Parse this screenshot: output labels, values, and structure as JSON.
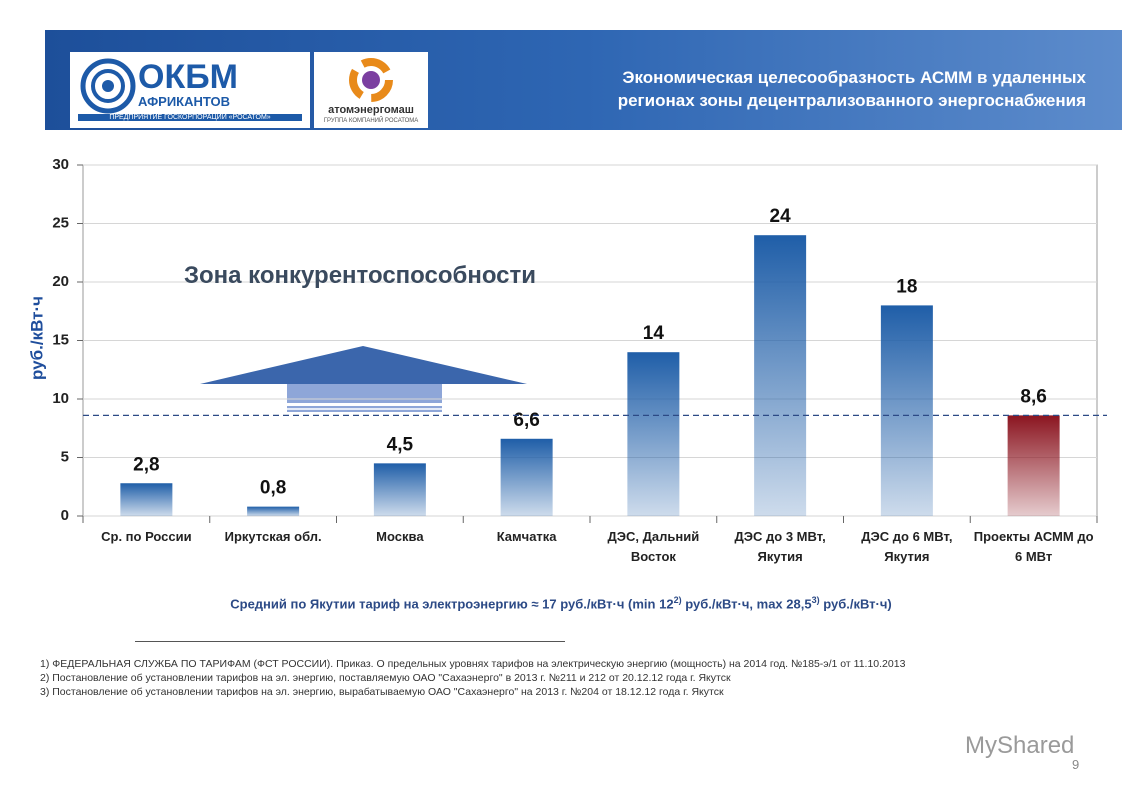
{
  "header": {
    "title_lines": [
      "Экономическая целесообразность АСММ в удаленных",
      "регионах зоны децентрализованного энергоснабжения"
    ],
    "logo1": {
      "name": "ОКБМ",
      "sub": "АФРИКАНТОВ",
      "caption": "ПРЕДПРИЯТИЕ ГОСКОРПОРАЦИИ «РОСАТОМ»"
    },
    "logo2": {
      "name": "атомэнергомаш",
      "caption": "ГРУППА КОМПАНИЙ РОСАТОМА"
    }
  },
  "chart_data": {
    "type": "bar",
    "y_label": "руб./кВт·ч",
    "annotation": "Зона конкурентоспособности",
    "categories": [
      "Ср. по России",
      "Иркутская обл.",
      "Москва",
      "Камчатка",
      "ДЭС, Дальний Восток",
      "ДЭС до 3 МВт, Якутия",
      "ДЭС до 6 МВт, Якутия",
      "Проекты АСММ до 6 МВт"
    ],
    "values": [
      2.8,
      0.8,
      4.5,
      6.6,
      14,
      24,
      18,
      8.6
    ],
    "value_labels": [
      "2,8",
      "0,8",
      "4,5",
      "6,6",
      "14",
      "24",
      "18",
      "8,6"
    ],
    "colors": [
      "#1f5ea8",
      "#1f5ea8",
      "#1f5ea8",
      "#1f5ea8",
      "#1f5ea8",
      "#1f5ea8",
      "#1f5ea8",
      "#8b1520"
    ],
    "reference_line": 8.6,
    "ylim": [
      0,
      30
    ],
    "yticks": [
      0,
      5,
      10,
      15,
      20,
      25,
      30
    ],
    "grid": true
  },
  "note": [
    "Средний по Якутии тариф на электроэнергию ≈ 17 руб./кВт·ч (min 12",
    "2)",
    " руб./кВт·ч, max 28,5",
    "3)",
    " руб./кВт·ч)"
  ],
  "footnotes": [
    "1) ФЕДЕРАЛЬНАЯ СЛУЖБА ПО ТАРИФАМ (ФСТ РОССИИ). Приказ. О предельных уровнях тарифов на электрическую энергию (мощность) на 2014 год. №185-э/1 от 11.10.2013",
    "2) Постановление об установлении тарифов на эл. энергию, поставляемую ОАО \"Сахаэнерго\" в 2013 г. №211 и 212 от 20.12.12 года г. Якутск",
    "3) Постановление об установлении тарифов на эл. энергию, вырабатываемую ОАО \"Сахаэнерго\" на 2013 г. №204 от 18.12.12 года г. Якутск"
  ],
  "watermark": "MyShared",
  "page_number": "9"
}
